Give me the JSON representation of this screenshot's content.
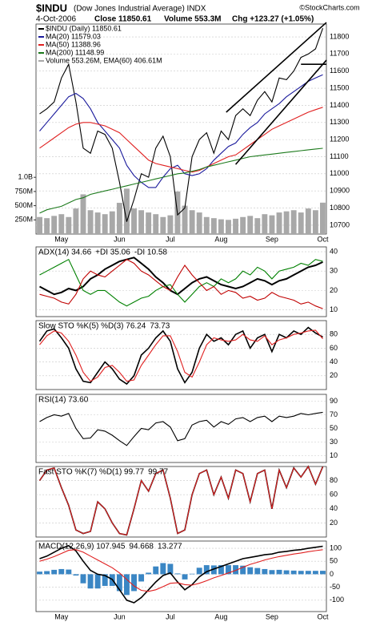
{
  "header": {
    "symbol": "$INDU",
    "name": "(Dow Jones Industrial Average) INDX",
    "date": "4-Oct-2006",
    "close": "Close 11850.61",
    "volume": "Volume 553.3M",
    "change": "Chg +123.27 (+1.05%)",
    "credit": "©StockCharts.com"
  },
  "chart_data": [
    {
      "type": "line",
      "categories": [
        null,
        null,
        null,
        "May",
        null,
        null,
        null,
        null,
        null,
        null,
        null,
        "Jun",
        null,
        null,
        null,
        null,
        null,
        null,
        "Jul",
        null,
        null,
        null,
        null,
        null,
        null,
        "Aug",
        null,
        null,
        null,
        null,
        null,
        null,
        "Sep",
        null,
        null,
        null,
        null,
        null,
        null,
        "Oct"
      ],
      "ylim": [
        10648,
        11875
      ],
      "yticks": [
        10700,
        10800,
        10900,
        11000,
        11100,
        11200,
        11300,
        11400,
        11500,
        11600,
        11700,
        11800
      ],
      "y2lim": [
        0,
        3700
      ],
      "y2ticks": [
        {
          "value": 250,
          "label": "250M"
        },
        {
          "value": 500,
          "label": "500M"
        },
        {
          "value": 750,
          "label": "750M"
        },
        {
          "value": 1000,
          "label": "1.0B"
        }
      ],
      "grid": true,
      "series": [
        {
          "name": "$INDU (Daily) 11850.61",
          "color": "#000000",
          "values": [
            11350,
            11380,
            11420,
            11560,
            11640,
            11420,
            11150,
            11120,
            11250,
            11230,
            11150,
            10950,
            10720,
            10850,
            11000,
            10980,
            11150,
            11220,
            11100,
            10760,
            10800,
            11100,
            11200,
            11240,
            11120,
            11250,
            11200,
            11340,
            11380,
            11340,
            11430,
            11480,
            11420,
            11560,
            11550,
            11600,
            11680,
            11700,
            11730,
            11850.61
          ]
        },
        {
          "name": "MA(20) 11579.03",
          "color": "#1a1a9c",
          "values": [
            11250,
            11300,
            11350,
            11400,
            11450,
            11470,
            11440,
            11380,
            11300,
            11250,
            11200,
            11150,
            11050,
            10990,
            10950,
            10920,
            10920,
            10980,
            11030,
            11050,
            11000,
            10990,
            11000,
            11030,
            11080,
            11120,
            11160,
            11180,
            11230,
            11270,
            11300,
            11350,
            11380,
            11410,
            11450,
            11480,
            11510,
            11540,
            11560,
            11579.03
          ]
        },
        {
          "name": "MA(50) 11388.96",
          "color": "#e02020",
          "values": [
            11150,
            11180,
            11210,
            11240,
            11270,
            11290,
            11300,
            11300,
            11290,
            11280,
            11260,
            11240,
            11200,
            11160,
            11120,
            11080,
            11060,
            11050,
            11040,
            11030,
            11020,
            11010,
            11020,
            11040,
            11060,
            11080,
            11100,
            11110,
            11140,
            11170,
            11200,
            11230,
            11260,
            11280,
            11300,
            11320,
            11340,
            11360,
            11375,
            11388.96
          ]
        },
        {
          "name": "MA(200) 11148.99",
          "color": "#1c7a1c",
          "values": [
            10770,
            10790,
            10800,
            10810,
            10830,
            10850,
            10860,
            10880,
            10890,
            10900,
            10910,
            10920,
            10930,
            10940,
            10950,
            10960,
            10970,
            10980,
            10990,
            11000,
            11005,
            11015,
            11025,
            11040,
            11050,
            11060,
            11070,
            11080,
            11090,
            11100,
            11105,
            11110,
            11115,
            11120,
            11125,
            11130,
            11135,
            11140,
            11145,
            11148.99
          ]
        },
        {
          "name": "Volume 553.26M, EMA(60) 406.61M",
          "color": "#a8a8a8",
          "type": "bar",
          "axis": "y2",
          "values": [
            300,
            280,
            320,
            350,
            300,
            450,
            700,
            420,
            380,
            350,
            400,
            550,
            800,
            450,
            420,
            380,
            350,
            300,
            330,
            750,
            500,
            420,
            380,
            300,
            280,
            260,
            250,
            270,
            300,
            320,
            280,
            350,
            330,
            380,
            400,
            420,
            380,
            450,
            420,
            553.26
          ]
        }
      ],
      "trendlines": [
        [
          [
            25.7,
            11360
          ],
          [
            39.5,
            11884
          ]
        ],
        [
          [
            27,
            11055
          ],
          [
            39.5,
            11664
          ]
        ],
        [
          [
            36,
            11640
          ],
          [
            39.5,
            11640
          ]
        ]
      ]
    },
    {
      "type": "line",
      "ylim": [
        6.5,
        42.5
      ],
      "yticks": [
        10,
        20,
        30,
        40
      ],
      "grid": true,
      "series": [
        {
          "name": "ADX(14) 34.66",
          "color": "#000000",
          "width": 2,
          "values": [
            22,
            20,
            18,
            19,
            21,
            20,
            22,
            26,
            28,
            31,
            33,
            35,
            36,
            37,
            34,
            31,
            27,
            24,
            20,
            18,
            21,
            24,
            26,
            27,
            25,
            23,
            22,
            21,
            22,
            24,
            26,
            25,
            23,
            25,
            26,
            28,
            30,
            32,
            33,
            34.66
          ]
        },
        {
          "name": "+DI 35.06",
          "color": "#008000",
          "values": [
            28,
            30,
            32,
            34,
            36,
            28,
            20,
            18,
            20,
            20,
            17,
            14,
            12,
            14,
            16,
            17,
            20,
            22,
            23,
            18,
            14,
            18,
            22,
            24,
            22,
            26,
            24,
            26,
            30,
            28,
            32,
            30,
            26,
            30,
            31,
            32,
            34,
            33,
            36,
            35.06
          ]
        },
        {
          "name": "-DI 10.58",
          "color": "#c00000",
          "values": [
            18,
            17,
            16,
            14,
            13,
            18,
            26,
            30,
            28,
            27,
            30,
            33,
            36,
            34,
            30,
            28,
            25,
            22,
            20,
            27,
            33,
            28,
            24,
            20,
            22,
            18,
            20,
            19,
            16,
            17,
            15,
            16,
            19,
            17,
            16,
            15,
            13,
            14,
            12,
            10.58
          ]
        }
      ]
    },
    {
      "type": "line",
      "ylim": [
        0,
        100
      ],
      "yticks": [
        20,
        40,
        60,
        80
      ],
      "grid": true,
      "series": [
        {
          "name": "Slow STO %K(5) %D(3) 76.24",
          "color": "#000000",
          "width": 1.6,
          "values": [
            70,
            85,
            88,
            75,
            60,
            30,
            12,
            10,
            25,
            40,
            30,
            15,
            8,
            20,
            50,
            60,
            75,
            85,
            70,
            30,
            10,
            25,
            60,
            80,
            70,
            75,
            65,
            80,
            85,
            60,
            75,
            80,
            55,
            80,
            75,
            85,
            80,
            90,
            82,
            76.24
          ]
        },
        {
          "name": "73.73",
          "color": "#e02020",
          "values": [
            65,
            78,
            85,
            82,
            70,
            50,
            25,
            12,
            18,
            32,
            35,
            25,
            12,
            14,
            35,
            50,
            65,
            78,
            78,
            55,
            25,
            18,
            40,
            65,
            75,
            72,
            70,
            72,
            80,
            72,
            70,
            78,
            65,
            72,
            75,
            80,
            82,
            85,
            86,
            73.73
          ]
        }
      ]
    },
    {
      "type": "line",
      "ylim": [
        0,
        100
      ],
      "yticks": [
        10,
        30,
        50,
        70,
        90
      ],
      "grid": true,
      "series": [
        {
          "name": "RSI(14) 73.60",
          "color": "#000000",
          "values": [
            60,
            66,
            70,
            68,
            72,
            50,
            35,
            36,
            48,
            46,
            40,
            32,
            25,
            38,
            50,
            48,
            58,
            60,
            52,
            32,
            35,
            55,
            60,
            62,
            52,
            60,
            56,
            64,
            66,
            60,
            66,
            68,
            60,
            68,
            66,
            68,
            72,
            70,
            72,
            73.6
          ]
        }
      ]
    },
    {
      "type": "line",
      "ylim": [
        0,
        100
      ],
      "yticks": [
        20,
        40,
        60,
        80
      ],
      "grid": true,
      "series": [
        {
          "name": "Fast STO %K(7) %D(1) 99.77",
          "color": "#000000",
          "width": 1.6,
          "values": [
            80,
            95,
            98,
            70,
            45,
            10,
            5,
            8,
            50,
            40,
            20,
            5,
            3,
            40,
            80,
            65,
            90,
            95,
            55,
            5,
            10,
            60,
            90,
            95,
            60,
            85,
            55,
            95,
            90,
            50,
            90,
            95,
            40,
            95,
            70,
            98,
            85,
            100,
            75,
            99.77
          ]
        },
        {
          "name": "99.77",
          "color": "#e02020",
          "values": [
            80,
            95,
            98,
            70,
            45,
            10,
            5,
            8,
            50,
            40,
            20,
            5,
            3,
            40,
            80,
            65,
            90,
            95,
            55,
            5,
            10,
            60,
            90,
            95,
            60,
            85,
            55,
            95,
            90,
            50,
            90,
            95,
            40,
            95,
            70,
            98,
            85,
            100,
            75,
            99.77
          ]
        }
      ]
    },
    {
      "type": "line",
      "categories": [
        null,
        null,
        null,
        "May",
        null,
        null,
        null,
        null,
        null,
        null,
        null,
        "Jun",
        null,
        null,
        null,
        null,
        null,
        null,
        "Jul",
        null,
        null,
        null,
        null,
        null,
        null,
        "Aug",
        null,
        null,
        null,
        null,
        null,
        null,
        "Sep",
        null,
        null,
        null,
        null,
        null,
        null,
        "Oct"
      ],
      "ylim": [
        -144,
        128
      ],
      "yticks": [
        -100,
        -50,
        0,
        50,
        100
      ],
      "grid": true,
      "series": [
        {
          "name": "MACD(12,26,9) 107.945",
          "color": "#000000",
          "width": 1.6,
          "values": [
            60,
            70,
            85,
            100,
            110,
            90,
            50,
            15,
            0,
            -5,
            -20,
            -60,
            -100,
            -110,
            -90,
            -60,
            -30,
            -5,
            5,
            -30,
            -60,
            -40,
            -10,
            10,
            20,
            30,
            40,
            50,
            60,
            65,
            70,
            75,
            78,
            85,
            88,
            92,
            95,
            100,
            104,
            107.945
          ]
        },
        {
          "name": "94.668",
          "color": "#e02020",
          "values": [
            50,
            58,
            68,
            80,
            92,
            95,
            85,
            70,
            55,
            40,
            25,
            5,
            -20,
            -45,
            -62,
            -66,
            -60,
            -48,
            -35,
            -33,
            -40,
            -42,
            -35,
            -25,
            -14,
            -5,
            5,
            15,
            27,
            38,
            46,
            55,
            62,
            68,
            73,
            78,
            82,
            87,
            91,
            94.668
          ]
        },
        {
          "name": "13.277",
          "color": "#3a86c4",
          "type": "bar",
          "values": [
            10,
            12,
            17,
            20,
            18,
            -5,
            -35,
            -55,
            -55,
            -45,
            -45,
            -65,
            -80,
            -65,
            -28,
            6,
            30,
            43,
            40,
            3,
            -20,
            2,
            25,
            35,
            34,
            35,
            35,
            35,
            33,
            27,
            24,
            20,
            16,
            17,
            15,
            14,
            13,
            13,
            13,
            13.277
          ]
        }
      ]
    }
  ]
}
